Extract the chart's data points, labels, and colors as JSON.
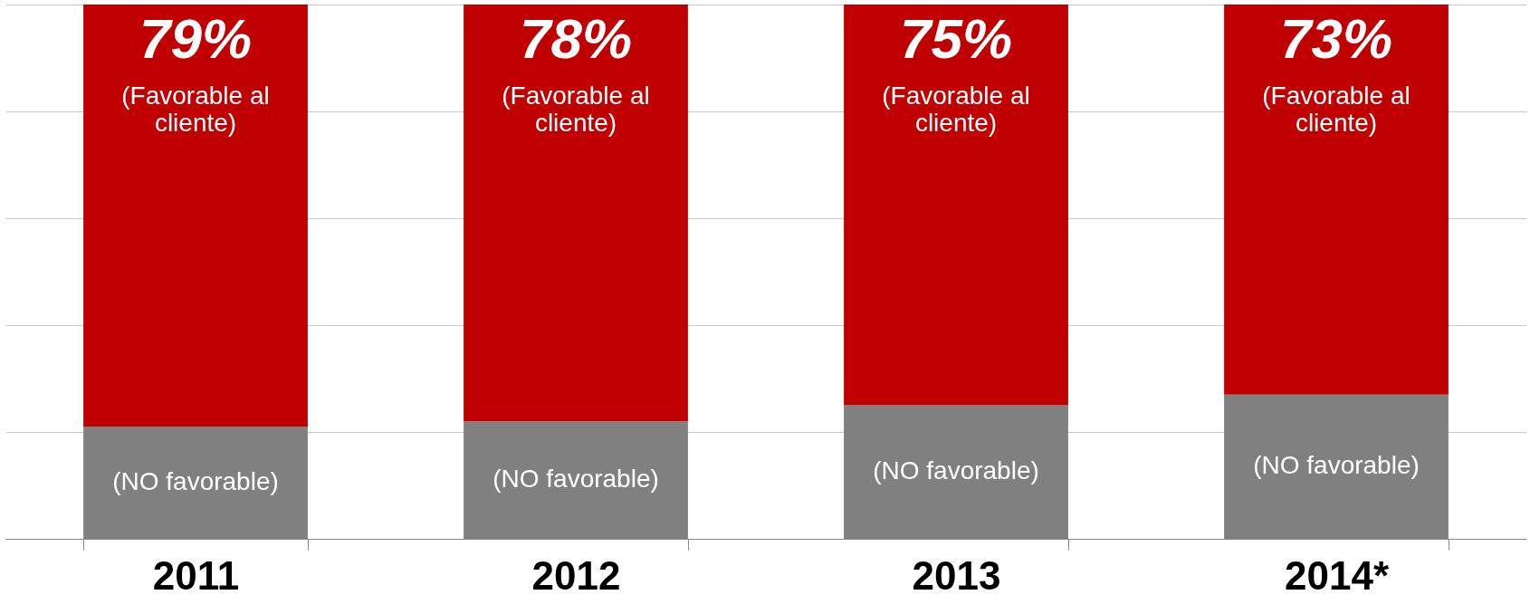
{
  "chart_data": {
    "type": "bar",
    "stacked": true,
    "categories": [
      "2011",
      "2012",
      "2013",
      "2014*"
    ],
    "series": [
      {
        "name": "(NO favorable)",
        "color": "#808080",
        "values": [
          21,
          22,
          25,
          27
        ]
      },
      {
        "name": "(Favorable al cliente)",
        "color": "#c00000",
        "values": [
          79,
          78,
          75,
          73
        ],
        "value_labels": [
          "79%",
          "78%",
          "75%",
          "73%"
        ]
      }
    ],
    "ylim": [
      0,
      100
    ],
    "yticks": [
      {
        "value": 0,
        "label": null
      },
      {
        "value": 20,
        "label": null
      },
      {
        "value": 40,
        "label": null
      },
      {
        "value": 60,
        "label": null
      },
      {
        "value": 80,
        "label": null
      },
      {
        "value": 100,
        "label": null
      }
    ],
    "grid": "y",
    "tick_labels": "x"
  }
}
